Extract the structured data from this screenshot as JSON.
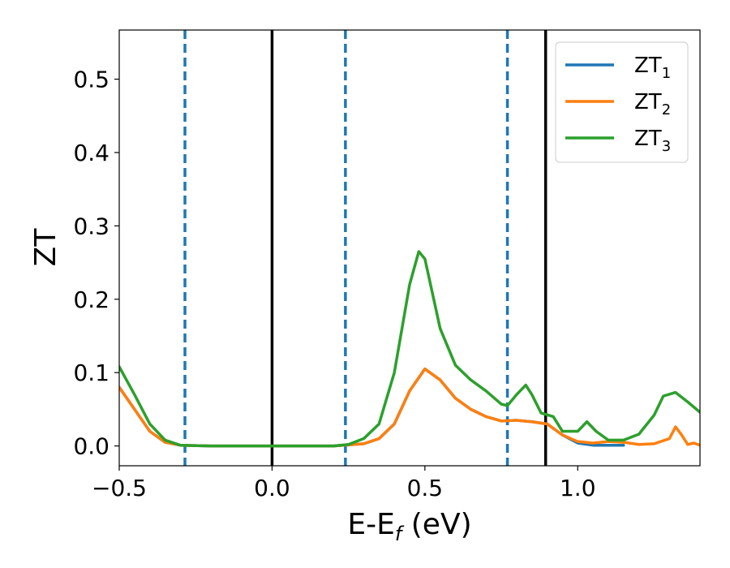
{
  "chart_data": {
    "type": "line",
    "xlabel": {
      "base": "E-E",
      "sub": "f",
      "suffix": " (eV)"
    },
    "ylabel": "ZT",
    "xlim": [
      -0.5,
      1.4
    ],
    "ylim": [
      -0.027,
      0.567
    ],
    "xticks": [
      -0.5,
      0.0,
      0.5,
      1.0
    ],
    "xtick_labels": [
      "−0.5",
      "0.0",
      "0.5",
      "1.0"
    ],
    "yticks": [
      0.0,
      0.1,
      0.2,
      0.3,
      0.4,
      0.5
    ],
    "ytick_labels": [
      "0.0",
      "0.1",
      "0.2",
      "0.3",
      "0.4",
      "0.5"
    ],
    "legend_position": "top-right",
    "vlines": [
      {
        "x": -0.285,
        "style": "dashed",
        "color": "#1f77b4"
      },
      {
        "x": 0.0,
        "style": "solid",
        "color": "#000000"
      },
      {
        "x": 0.24,
        "style": "dashed",
        "color": "#1f77b4"
      },
      {
        "x": 0.77,
        "style": "dashed",
        "color": "#1f77b4"
      },
      {
        "x": 0.895,
        "style": "solid",
        "color": "#000000"
      }
    ],
    "series": [
      {
        "name": "ZT",
        "sub": "1",
        "color": "#1f77b4",
        "points": [
          [
            -0.5,
            0.08
          ],
          [
            -0.45,
            0.05
          ],
          [
            -0.4,
            0.02
          ],
          [
            -0.35,
            0.005
          ],
          [
            -0.3,
            0.001
          ],
          [
            -0.2,
            0.0
          ],
          [
            0.0,
            0.0
          ],
          [
            0.2,
            0.0
          ],
          [
            0.3,
            0.003
          ],
          [
            0.35,
            0.01
          ],
          [
            0.4,
            0.03
          ],
          [
            0.45,
            0.075
          ],
          [
            0.5,
            0.105
          ],
          [
            0.55,
            0.09
          ],
          [
            0.6,
            0.065
          ],
          [
            0.65,
            0.05
          ],
          [
            0.7,
            0.04
          ],
          [
            0.75,
            0.034
          ],
          [
            0.8,
            0.035
          ],
          [
            0.85,
            0.033
          ],
          [
            0.9,
            0.03
          ],
          [
            0.95,
            0.015
          ],
          [
            1.0,
            0.004
          ],
          [
            1.05,
            0.001
          ],
          [
            1.1,
            0.001
          ],
          [
            1.15,
            0.001
          ]
        ]
      },
      {
        "name": "ZT",
        "sub": "2",
        "color": "#ff7f0e",
        "points": [
          [
            -0.5,
            0.08
          ],
          [
            -0.45,
            0.05
          ],
          [
            -0.4,
            0.02
          ],
          [
            -0.35,
            0.005
          ],
          [
            -0.3,
            0.001
          ],
          [
            -0.2,
            0.0
          ],
          [
            0.0,
            0.0
          ],
          [
            0.2,
            0.0
          ],
          [
            0.3,
            0.003
          ],
          [
            0.35,
            0.01
          ],
          [
            0.4,
            0.03
          ],
          [
            0.45,
            0.075
          ],
          [
            0.5,
            0.105
          ],
          [
            0.55,
            0.09
          ],
          [
            0.6,
            0.065
          ],
          [
            0.65,
            0.05
          ],
          [
            0.7,
            0.04
          ],
          [
            0.75,
            0.034
          ],
          [
            0.8,
            0.035
          ],
          [
            0.85,
            0.033
          ],
          [
            0.9,
            0.03
          ],
          [
            0.95,
            0.015
          ],
          [
            1.0,
            0.006
          ],
          [
            1.05,
            0.004
          ],
          [
            1.1,
            0.006
          ],
          [
            1.15,
            0.005
          ],
          [
            1.2,
            0.002
          ],
          [
            1.25,
            0.003
          ],
          [
            1.3,
            0.01
          ],
          [
            1.32,
            0.026
          ],
          [
            1.34,
            0.015
          ],
          [
            1.36,
            0.002
          ],
          [
            1.38,
            0.004
          ],
          [
            1.4,
            0.001
          ]
        ]
      },
      {
        "name": "ZT",
        "sub": "3",
        "color": "#2ca02c",
        "points": [
          [
            -0.5,
            0.108
          ],
          [
            -0.45,
            0.07
          ],
          [
            -0.4,
            0.03
          ],
          [
            -0.35,
            0.008
          ],
          [
            -0.3,
            0.001
          ],
          [
            -0.2,
            0.0
          ],
          [
            0.0,
            0.0
          ],
          [
            0.2,
            0.0
          ],
          [
            0.25,
            0.002
          ],
          [
            0.3,
            0.01
          ],
          [
            0.35,
            0.03
          ],
          [
            0.4,
            0.1
          ],
          [
            0.45,
            0.22
          ],
          [
            0.48,
            0.265
          ],
          [
            0.5,
            0.255
          ],
          [
            0.55,
            0.16
          ],
          [
            0.6,
            0.11
          ],
          [
            0.65,
            0.09
          ],
          [
            0.7,
            0.075
          ],
          [
            0.75,
            0.057
          ],
          [
            0.77,
            0.055
          ],
          [
            0.8,
            0.07
          ],
          [
            0.83,
            0.083
          ],
          [
            0.85,
            0.07
          ],
          [
            0.88,
            0.045
          ],
          [
            0.92,
            0.04
          ],
          [
            0.95,
            0.02
          ],
          [
            1.0,
            0.02
          ],
          [
            1.03,
            0.033
          ],
          [
            1.06,
            0.02
          ],
          [
            1.1,
            0.008
          ],
          [
            1.15,
            0.008
          ],
          [
            1.2,
            0.016
          ],
          [
            1.25,
            0.042
          ],
          [
            1.28,
            0.068
          ],
          [
            1.32,
            0.073
          ],
          [
            1.36,
            0.06
          ],
          [
            1.4,
            0.046
          ]
        ]
      }
    ]
  }
}
